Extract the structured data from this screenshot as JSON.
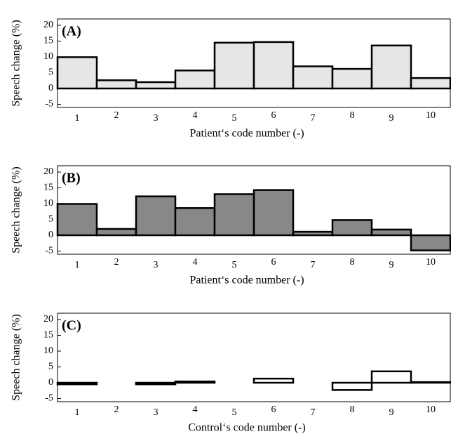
{
  "chart_data": [
    {
      "type": "bar",
      "annotation": "(A)",
      "y_label": "Speech change (%)",
      "x_label": "Patient‘s code number (-)",
      "categories": [
        "1",
        "2",
        "3",
        "4",
        "5",
        "6",
        "7",
        "8",
        "9",
        "10"
      ],
      "values": [
        9.9,
        2.6,
        2.0,
        5.7,
        14.5,
        14.7,
        7.0,
        6.2,
        13.6,
        3.3
      ],
      "color": "#e6e6e6",
      "ylim": [
        -6,
        22
      ],
      "yticks": [
        -5,
        0,
        5,
        10,
        15,
        20
      ]
    },
    {
      "type": "bar",
      "annotation": "(B)",
      "y_label": "Speech change (%)",
      "x_label": "Patient‘s code number (-)",
      "categories": [
        "1",
        "2",
        "3",
        "4",
        "5",
        "6",
        "7",
        "8",
        "9",
        "10"
      ],
      "values": [
        9.9,
        2.0,
        12.3,
        8.6,
        13.0,
        14.3,
        1.1,
        4.8,
        1.8,
        -4.8
      ],
      "color": "#888888",
      "ylim": [
        -6,
        22
      ],
      "yticks": [
        -5,
        0,
        5,
        10,
        15,
        20
      ]
    },
    {
      "type": "bar",
      "annotation": "(C)",
      "y_label": "Speech change (%)",
      "x_label": "Control‘s code number (-)",
      "categories": [
        "1",
        "2",
        "3",
        "4",
        "5",
        "6",
        "7",
        "8",
        "9",
        "10"
      ],
      "values": [
        -0.5,
        0,
        -0.5,
        0.4,
        0,
        1.3,
        0,
        -2.3,
        3.6,
        0.2
      ],
      "color": "#ffffff",
      "ylim": [
        -6,
        22
      ],
      "yticks": [
        -5,
        0,
        5,
        10,
        15,
        20
      ]
    }
  ]
}
